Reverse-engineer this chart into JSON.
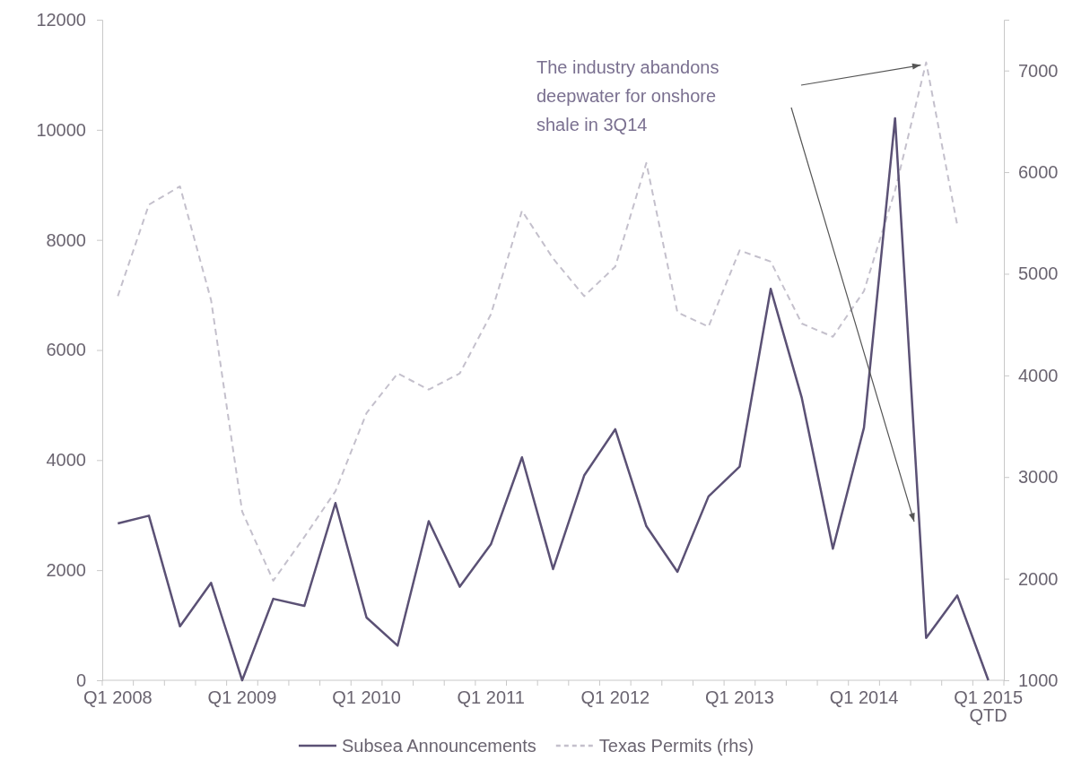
{
  "chart_data": {
    "type": "line",
    "categories": [
      "Q1 2008",
      null,
      null,
      null,
      "Q1 2009",
      null,
      null,
      null,
      "Q1 2010",
      null,
      null,
      null,
      "Q1 2011",
      null,
      null,
      null,
      "Q1 2012",
      null,
      null,
      null,
      "Q1 2013",
      null,
      null,
      null,
      "Q1 2014",
      null,
      null,
      null,
      "Q1 2015\nQTD"
    ],
    "series": [
      {
        "name": "Subsea Announcements",
        "color": "#5b5175",
        "line_style": "solid",
        "values": [
          2850,
          2990,
          980,
          1770,
          0,
          1480,
          1350,
          3220,
          1140,
          630,
          2890,
          1700,
          2470,
          4050,
          2020,
          3720,
          4560,
          2800,
          1970,
          3340,
          3880,
          7110,
          5130,
          2390,
          4590,
          10210,
          770,
          1540,
          0
        ]
      },
      {
        "name": "Texas Permits (rhs)",
        "color": "#c4c0cc",
        "line_style": "dashed",
        "axis": "y2",
        "values": [
          4780,
          5680,
          5860,
          4740,
          2660,
          1980,
          2410,
          2860,
          3630,
          4020,
          3860,
          4020,
          4600,
          5620,
          5150,
          4780,
          5070,
          6090,
          4620,
          4480,
          5230,
          5120,
          4510,
          4380,
          4830,
          5820,
          7080,
          5480,
          null
        ]
      }
    ],
    "ylim": [
      0,
      12000
    ],
    "yticks": [
      0,
      2000,
      4000,
      6000,
      8000,
      10000,
      12000
    ],
    "y2lim": [
      1000,
      7500
    ],
    "y2ticks": [
      1000,
      2000,
      3000,
      4000,
      5000,
      6000,
      7000
    ],
    "annotations": [
      "The industry abandons\ndeepwater for onshore\nshale in 3Q14"
    ],
    "legend": "bottom",
    "grid": false,
    "marker": "none"
  }
}
